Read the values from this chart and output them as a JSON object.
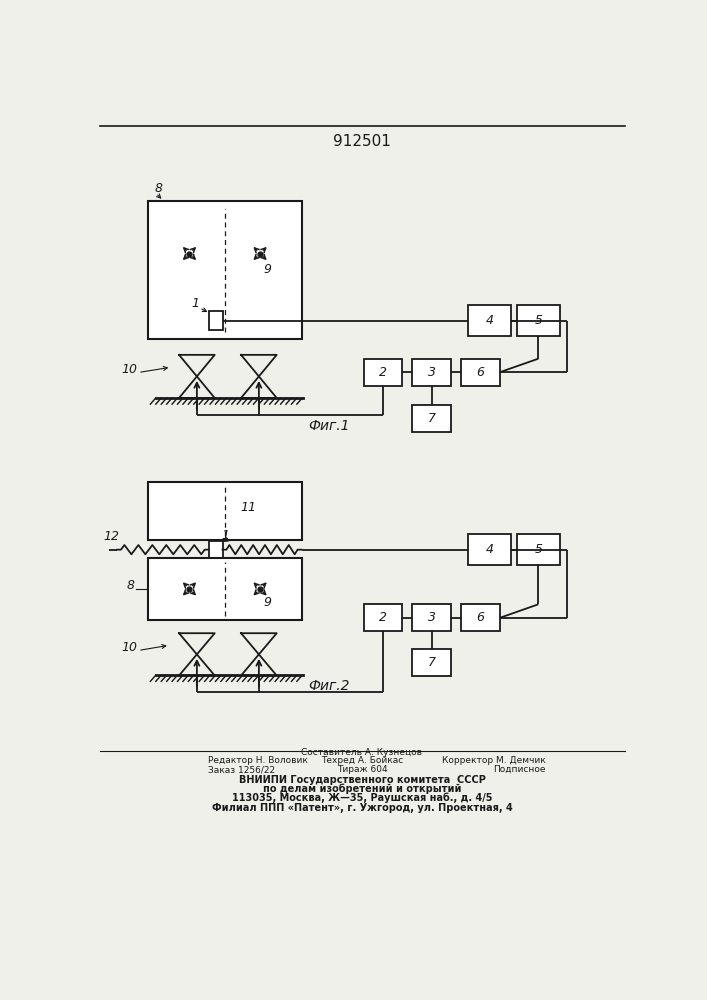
{
  "title": "912501",
  "fig1_label": "Фиг.1",
  "fig2_label": "Фиг.2",
  "bg_color": "#f0f0eb",
  "line_color": "#1a1a1a",
  "box_color": "#ffffff"
}
